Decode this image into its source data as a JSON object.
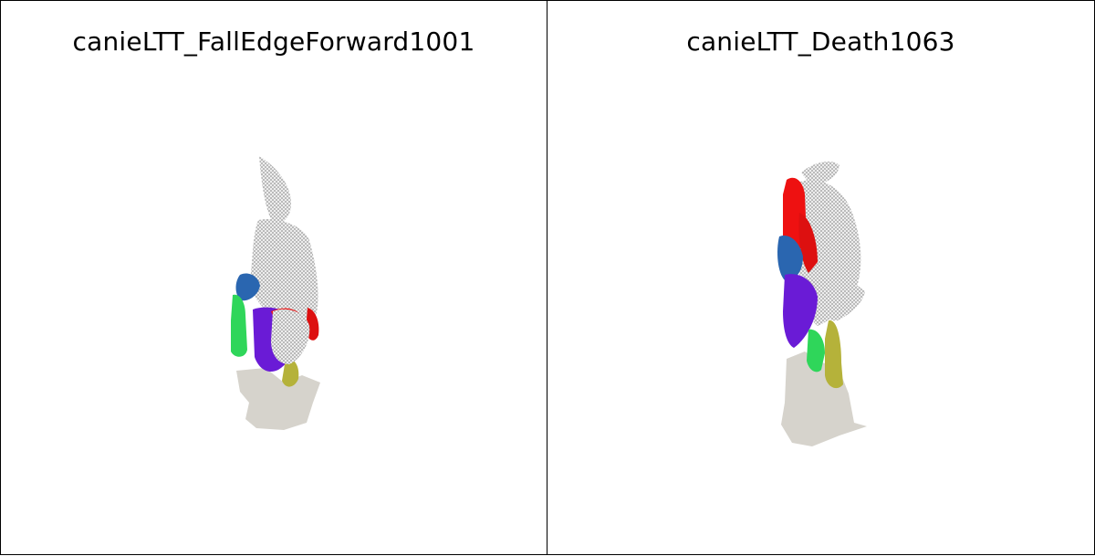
{
  "panels": [
    {
      "title": "canieLTT_FallEdgeForward1001",
      "model": "wolf-mesh",
      "palette": {
        "mesh": "#d9d9d9",
        "shadow": "#d6d3cc",
        "red": "#ee1111",
        "blue": "#2a66b0",
        "purple": "#6a1bd6",
        "green": "#2fd65a",
        "yellow": "#b5b23a"
      }
    },
    {
      "title": "canieLTT_Death1063",
      "model": "wolf-mesh",
      "palette": {
        "mesh": "#d9d9d9",
        "shadow": "#d6d3cc",
        "red": "#ee1111",
        "blue": "#2a66b0",
        "purple": "#6a1bd6",
        "green": "#2fd65a",
        "yellow": "#b5b23a"
      }
    }
  ]
}
